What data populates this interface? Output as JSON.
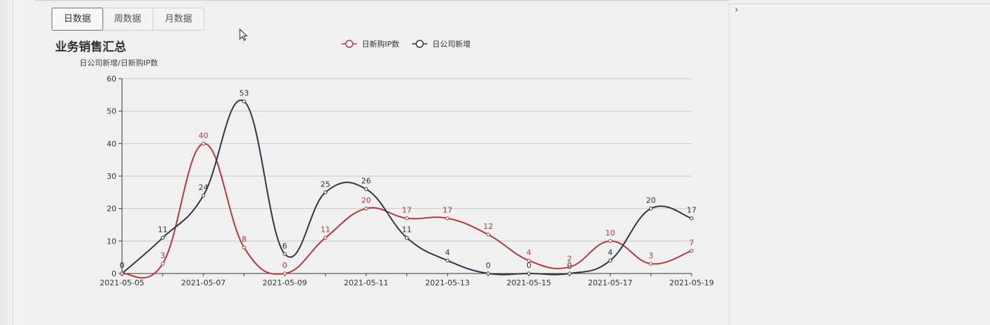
{
  "tabs": [
    {
      "label": "日数据",
      "active": true
    },
    {
      "label": "周数据",
      "active": false
    },
    {
      "label": "月数据",
      "active": false
    }
  ],
  "chart_data": {
    "type": "line",
    "title": "业务销售汇总",
    "ylabel": "日公司新增/日新购IP数",
    "xlabel": "",
    "ylim": [
      0,
      60
    ],
    "yticks": [
      0,
      10,
      20,
      30,
      40,
      50,
      60
    ],
    "x": [
      "2021-05-05",
      "2021-05-06",
      "2021-05-07",
      "2021-05-08",
      "2021-05-09",
      "2021-05-10",
      "2021-05-11",
      "2021-05-12",
      "2021-05-13",
      "2021-05-14",
      "2021-05-15",
      "2021-05-16",
      "2021-05-17",
      "2021-05-18",
      "2021-05-19"
    ],
    "xtick_labels": [
      "2021-05-05",
      "2021-05-07",
      "2021-05-09",
      "2021-05-11",
      "2021-05-13",
      "2021-05-15",
      "2021-05-17",
      "2021-05-19"
    ],
    "grid": true,
    "legend_position": "top-center",
    "smooth": true,
    "series": [
      {
        "name": "日新购IP数",
        "color": "#b03a3e",
        "values": [
          0,
          3,
          40,
          8,
          0,
          11,
          20,
          17,
          17,
          12,
          4,
          2,
          10,
          3,
          7
        ]
      },
      {
        "name": "日公司新增",
        "color": "#2f3644",
        "values": [
          0,
          11,
          24,
          53,
          6,
          25,
          26,
          11,
          4,
          0,
          0,
          0,
          4,
          20,
          17
        ]
      }
    ]
  }
}
